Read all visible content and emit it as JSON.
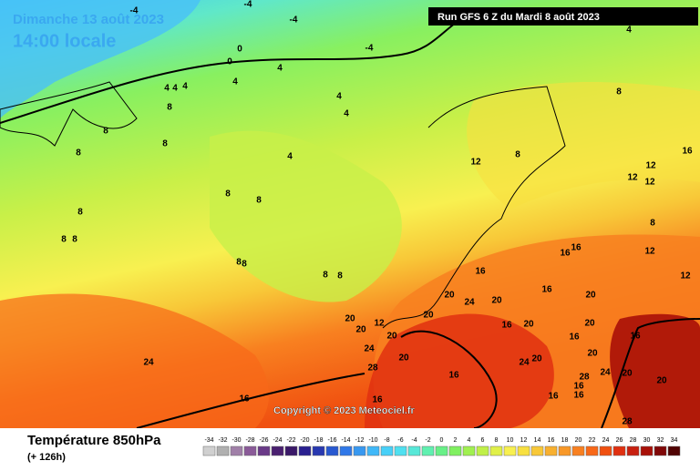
{
  "header": {
    "date": "Dimanche 13 août 2023",
    "time": "14:00 locale",
    "run": "Run GFS 6 Z du Mardi 8 août 2023"
  },
  "copyright": "Copyright © 2023 Meteociel.fr",
  "footer": {
    "title": "Température 850hPa",
    "lead": "(+ 126h)"
  },
  "map_labels": [
    -4,
    -4,
    -4,
    -4,
    4,
    0,
    0,
    4,
    4,
    4,
    4,
    4,
    8,
    4,
    4,
    8,
    8,
    8,
    4,
    8,
    12,
    8,
    16,
    12,
    12,
    12,
    8,
    8,
    8,
    8,
    8,
    8,
    16,
    16,
    12,
    8,
    8,
    8,
    8,
    16,
    12,
    20,
    24,
    20,
    16,
    20,
    12,
    20,
    20,
    16,
    20,
    20,
    24,
    20,
    28,
    24,
    16,
    24,
    20,
    16,
    20,
    20,
    16,
    20,
    24,
    20,
    28,
    16,
    16,
    16,
    16,
    16,
    28,
    20
  ],
  "scale": {
    "values": [
      -34,
      -32,
      -30,
      -28,
      -26,
      -24,
      -22,
      -20,
      -18,
      -16,
      -14,
      -12,
      -10,
      -8,
      -6,
      -4,
      -2,
      0,
      2,
      4,
      6,
      8,
      10,
      12,
      14,
      16,
      18,
      20,
      22,
      24,
      26,
      28,
      30,
      32,
      34
    ],
    "colors": [
      "#d0d0d0",
      "#b0b0b0",
      "#a080a8",
      "#8a5a98",
      "#6a3a88",
      "#4a2070",
      "#3a1868",
      "#2a2090",
      "#2838b0",
      "#2858d0",
      "#3078e8",
      "#3898f0",
      "#40b8f8",
      "#48d0f8",
      "#50e0f0",
      "#58e8d8",
      "#60f0b0",
      "#68f088",
      "#80f060",
      "#a0f050",
      "#c0f048",
      "#e0f048",
      "#f8f050",
      "#f8e040",
      "#f8c838",
      "#f8b030",
      "#f89828",
      "#f88020",
      "#f86818",
      "#f05010",
      "#e03010",
      "#c82010",
      "#a81008",
      "#800808",
      "#500404"
    ]
  }
}
